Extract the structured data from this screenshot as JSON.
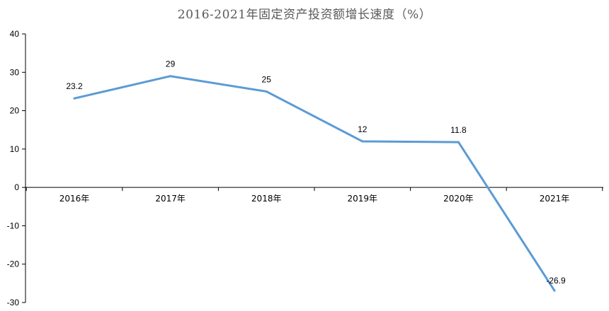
{
  "chart_data": {
    "type": "line",
    "title": "2016-2021年固定资产投资额增长速度（%）",
    "categories": [
      "2016年",
      "2017年",
      "2018年",
      "2019年",
      "2020年",
      "2021年"
    ],
    "series": [
      {
        "values": [
          23.2,
          29,
          25,
          12,
          11.8,
          -26.9
        ]
      }
    ],
    "data_labels": [
      "23.2",
      "29",
      "25",
      "12",
      "11.8",
      "-26.9"
    ],
    "ylim": [
      -30,
      40
    ],
    "yticks": [
      -30,
      -20,
      -10,
      0,
      10,
      20,
      30,
      40
    ],
    "xlabel": "",
    "ylabel": "",
    "grid": false,
    "line_color": "#5b9bd5",
    "axis_color": "#000000"
  }
}
